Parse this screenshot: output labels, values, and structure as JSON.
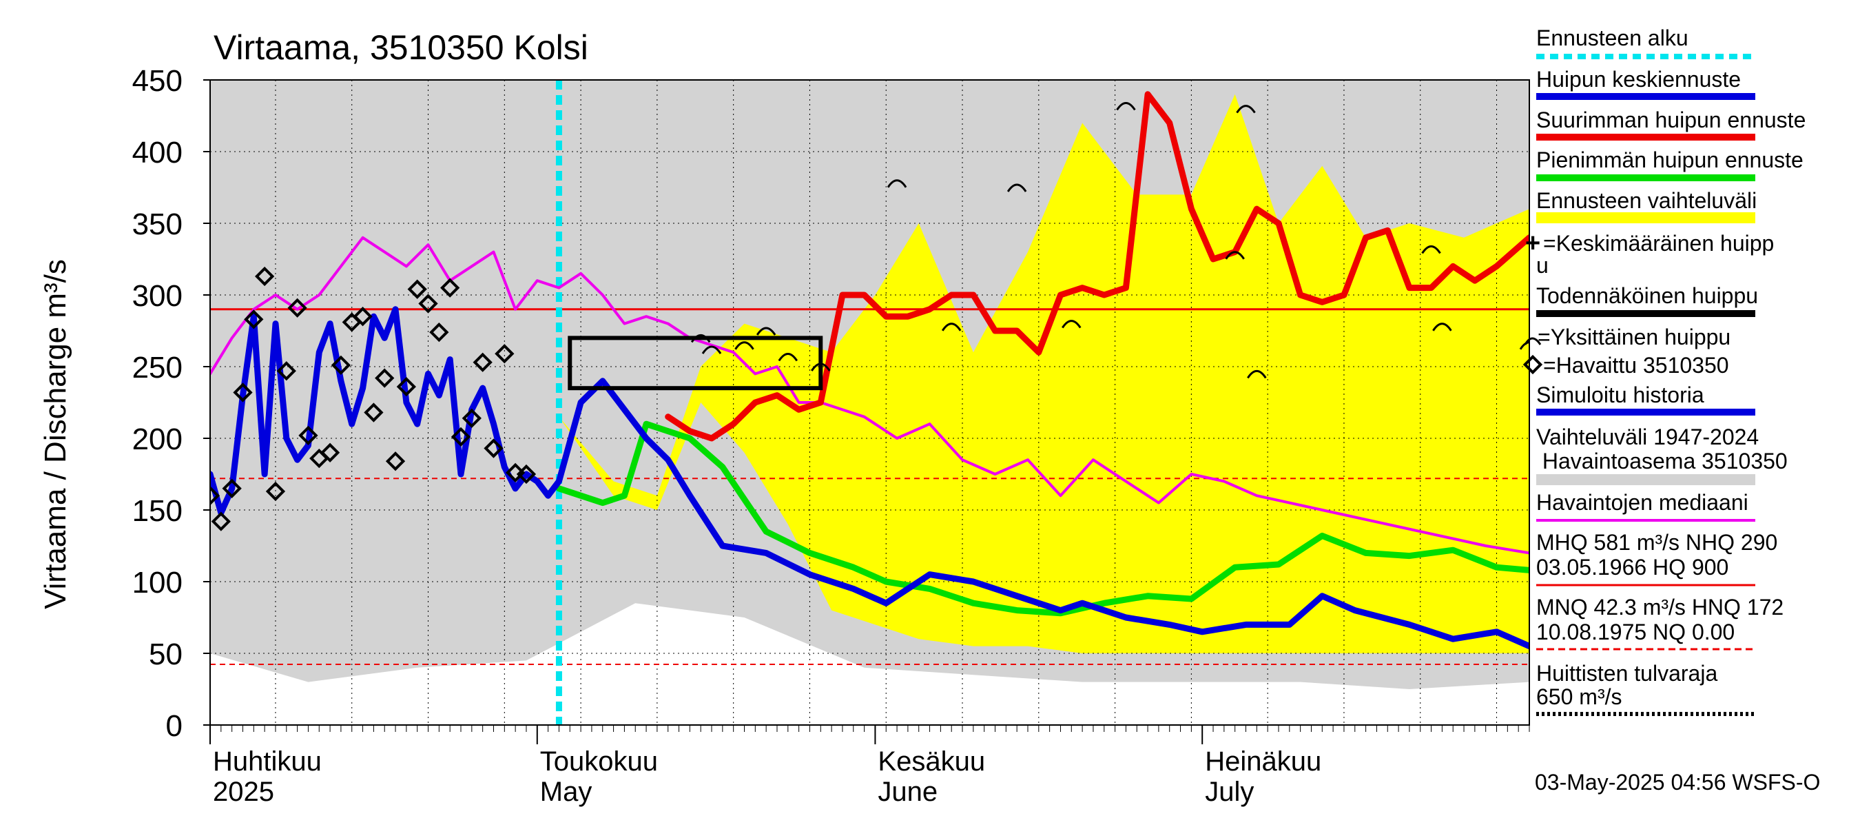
{
  "chart_data": {
    "type": "line",
    "title": "Virtaama, 3510350 Kolsi",
    "ylabel": "Virtaama / Discharge    m³/s",
    "ylim": [
      0,
      450
    ],
    "xlim": [
      "2025-04-01",
      "2025-07-31"
    ],
    "yticks": [
      "0",
      "50",
      "100",
      "150",
      "200",
      "250",
      "300",
      "350",
      "400",
      "450"
    ],
    "month_labels": [
      {
        "date": "2025-04-01",
        "fi": "Huhtikuu",
        "en": "2025"
      },
      {
        "date": "2025-05-01",
        "fi": "Toukokuu",
        "en": "May"
      },
      {
        "date": "2025-06-01",
        "fi": "Kesäkuu",
        "en": "June"
      },
      {
        "date": "2025-07-01",
        "fi": "Heinäkuu",
        "en": "July"
      }
    ],
    "timestamp": "03-May-2025 04:56 WSFS-O",
    "forecast_start": "2025-05-03",
    "reference_lines": {
      "NHQ": 290,
      "HNQ": 172,
      "MNQ": 42.3
    },
    "highlight_box": {
      "x": [
        "2025-05-04",
        "2025-05-27"
      ],
      "y": [
        235,
        270
      ]
    },
    "history_band": {
      "x": [
        "2025-04-01",
        "2025-04-10",
        "2025-04-20",
        "2025-04-30",
        "2025-05-10",
        "2025-05-20",
        "2025-05-31",
        "2025-06-10",
        "2025-06-20",
        "2025-06-30",
        "2025-07-10",
        "2025-07-20",
        "2025-07-31"
      ],
      "upper": [
        450,
        450,
        450,
        450,
        450,
        450,
        450,
        450,
        450,
        450,
        450,
        450,
        450
      ],
      "lower": [
        50,
        30,
        40,
        45,
        85,
        75,
        40,
        35,
        30,
        30,
        30,
        25,
        30
      ]
    },
    "forecast_band": {
      "x": [
        "2025-05-03",
        "2025-05-08",
        "2025-05-12",
        "2025-05-16",
        "2025-05-20",
        "2025-05-24",
        "2025-05-28",
        "2025-06-01",
        "2025-06-05",
        "2025-06-10",
        "2025-06-15",
        "2025-06-20",
        "2025-06-25",
        "2025-06-30",
        "2025-07-04",
        "2025-07-08",
        "2025-07-12",
        "2025-07-16",
        "2025-07-20",
        "2025-07-25",
        "2025-07-31"
      ],
      "upper": [
        215,
        170,
        160,
        250,
        280,
        270,
        260,
        300,
        350,
        260,
        330,
        420,
        370,
        370,
        440,
        350,
        390,
        340,
        350,
        340,
        360
      ],
      "lower": [
        215,
        160,
        150,
        225,
        190,
        140,
        80,
        70,
        60,
        55,
        55,
        50,
        50,
        50,
        50,
        50,
        50,
        50,
        50,
        50,
        50
      ]
    },
    "series": [
      {
        "name": "Huipun keskiennuste",
        "color": "#0000dd",
        "x": [
          "2025-04-01",
          "2025-04-02",
          "2025-04-03",
          "2025-04-04",
          "2025-04-05",
          "2025-04-06",
          "2025-04-07",
          "2025-04-08",
          "2025-04-09",
          "2025-04-10",
          "2025-04-11",
          "2025-04-12",
          "2025-04-13",
          "2025-04-14",
          "2025-04-15",
          "2025-04-16",
          "2025-04-17",
          "2025-04-18",
          "2025-04-19",
          "2025-04-20",
          "2025-04-21",
          "2025-04-22",
          "2025-04-23",
          "2025-04-24",
          "2025-04-25",
          "2025-04-26",
          "2025-04-27",
          "2025-04-28",
          "2025-04-29",
          "2025-04-30",
          "2025-05-01",
          "2025-05-02",
          "2025-05-03",
          "2025-05-05",
          "2025-05-07",
          "2025-05-09",
          "2025-05-11",
          "2025-05-13",
          "2025-05-15",
          "2025-05-18",
          "2025-05-22",
          "2025-05-26",
          "2025-05-30",
          "2025-06-02",
          "2025-06-06",
          "2025-06-10",
          "2025-06-12",
          "2025-06-14",
          "2025-06-18",
          "2025-06-20",
          "2025-06-24",
          "2025-06-28",
          "2025-07-01",
          "2025-07-05",
          "2025-07-09",
          "2025-07-12",
          "2025-07-15",
          "2025-07-20",
          "2025-07-24",
          "2025-07-28",
          "2025-07-31"
        ],
        "values": [
          175,
          148,
          165,
          230,
          285,
          175,
          280,
          200,
          185,
          195,
          260,
          280,
          240,
          210,
          235,
          285,
          270,
          290,
          225,
          210,
          245,
          230,
          255,
          175,
          220,
          235,
          210,
          180,
          165,
          175,
          170,
          160,
          170,
          225,
          240,
          220,
          200,
          185,
          160,
          125,
          120,
          105,
          95,
          85,
          105,
          100,
          95,
          90,
          80,
          85,
          75,
          70,
          65,
          70,
          70,
          90,
          80,
          70,
          60,
          65,
          55
        ]
      },
      {
        "name": "Suurimman huipun ennuste",
        "color": "#ee0000",
        "x": [
          "2025-05-13",
          "2025-05-15",
          "2025-05-17",
          "2025-05-19",
          "2025-05-21",
          "2025-05-23",
          "2025-05-25",
          "2025-05-27",
          "2025-05-29",
          "2025-05-31",
          "2025-06-02",
          "2025-06-04",
          "2025-06-06",
          "2025-06-08",
          "2025-06-10",
          "2025-06-12",
          "2025-06-14",
          "2025-06-16",
          "2025-06-18",
          "2025-06-20",
          "2025-06-22",
          "2025-06-24",
          "2025-06-26",
          "2025-06-28",
          "2025-06-30",
          "2025-07-02",
          "2025-07-04",
          "2025-07-06",
          "2025-07-08",
          "2025-07-10",
          "2025-07-12",
          "2025-07-14",
          "2025-07-16",
          "2025-07-18",
          "2025-07-20",
          "2025-07-22",
          "2025-07-24",
          "2025-07-26",
          "2025-07-28",
          "2025-07-31"
        ],
        "values": [
          215,
          205,
          200,
          210,
          225,
          230,
          220,
          225,
          300,
          300,
          285,
          285,
          290,
          300,
          300,
          275,
          275,
          260,
          300,
          305,
          300,
          305,
          440,
          420,
          360,
          325,
          330,
          360,
          350,
          300,
          295,
          300,
          340,
          345,
          305,
          305,
          320,
          310,
          320,
          340
        ]
      },
      {
        "name": "Pienimmän huipun ennuste",
        "color": "#00dd00",
        "x": [
          "2025-05-03",
          "2025-05-05",
          "2025-05-07",
          "2025-05-09",
          "2025-05-11",
          "2025-05-13",
          "2025-05-15",
          "2025-05-18",
          "2025-05-22",
          "2025-05-26",
          "2025-05-30",
          "2025-06-02",
          "2025-06-06",
          "2025-06-10",
          "2025-06-14",
          "2025-06-18",
          "2025-06-22",
          "2025-06-26",
          "2025-06-30",
          "2025-07-04",
          "2025-07-08",
          "2025-07-12",
          "2025-07-16",
          "2025-07-20",
          "2025-07-24",
          "2025-07-28",
          "2025-07-31"
        ],
        "values": [
          165,
          160,
          155,
          160,
          210,
          205,
          200,
          180,
          135,
          120,
          110,
          100,
          95,
          85,
          80,
          78,
          85,
          90,
          88,
          110,
          112,
          132,
          120,
          118,
          122,
          110,
          108
        ]
      },
      {
        "name": "Havaintojen mediaani",
        "color": "#ee00ee",
        "x": [
          "2025-04-01",
          "2025-04-03",
          "2025-04-05",
          "2025-04-07",
          "2025-04-09",
          "2025-04-11",
          "2025-04-13",
          "2025-04-15",
          "2025-04-17",
          "2025-04-19",
          "2025-04-21",
          "2025-04-23",
          "2025-04-25",
          "2025-04-27",
          "2025-04-29",
          "2025-05-01",
          "2025-05-03",
          "2025-05-05",
          "2025-05-07",
          "2025-05-09",
          "2025-05-11",
          "2025-05-13",
          "2025-05-15",
          "2025-05-17",
          "2025-05-19",
          "2025-05-21",
          "2025-05-23",
          "2025-05-25",
          "2025-05-27",
          "2025-05-29",
          "2025-05-31",
          "2025-06-03",
          "2025-06-06",
          "2025-06-09",
          "2025-06-12",
          "2025-06-15",
          "2025-06-18",
          "2025-06-21",
          "2025-06-24",
          "2025-06-27",
          "2025-06-30",
          "2025-07-03",
          "2025-07-06",
          "2025-07-09",
          "2025-07-12",
          "2025-07-15",
          "2025-07-18",
          "2025-07-21",
          "2025-07-24",
          "2025-07-27",
          "2025-07-31"
        ],
        "values": [
          245,
          270,
          290,
          300,
          290,
          300,
          320,
          340,
          330,
          320,
          335,
          310,
          320,
          330,
          290,
          310,
          305,
          315,
          300,
          280,
          285,
          280,
          270,
          265,
          260,
          245,
          250,
          225,
          225,
          220,
          215,
          200,
          210,
          185,
          175,
          185,
          160,
          185,
          170,
          155,
          175,
          170,
          160,
          155,
          150,
          145,
          140,
          135,
          130,
          125,
          120
        ]
      }
    ],
    "observed": {
      "name": "Havaittu 3510350",
      "x": [
        "2025-04-01",
        "2025-04-02",
        "2025-04-03",
        "2025-04-04",
        "2025-04-05",
        "2025-04-06",
        "2025-04-07",
        "2025-04-08",
        "2025-04-09",
        "2025-04-10",
        "2025-04-11",
        "2025-04-12",
        "2025-04-13",
        "2025-04-14",
        "2025-04-15",
        "2025-04-16",
        "2025-04-17",
        "2025-04-18",
        "2025-04-19",
        "2025-04-20",
        "2025-04-21",
        "2025-04-22",
        "2025-04-23",
        "2025-04-24",
        "2025-04-25",
        "2025-04-26",
        "2025-04-27",
        "2025-04-28",
        "2025-04-29",
        "2025-04-30"
      ],
      "values": [
        160,
        142,
        165,
        232,
        283,
        313,
        163,
        247,
        291,
        202,
        186,
        190,
        251,
        281,
        285,
        218,
        242,
        184,
        236,
        304,
        294,
        274,
        305,
        201,
        214,
        253,
        193,
        259,
        176,
        175
      ]
    },
    "peak_marks": {
      "name": "Yksittäinen huippu",
      "x": [
        "2025-05-16",
        "2025-05-17",
        "2025-05-20",
        "2025-05-22",
        "2025-05-24",
        "2025-05-27",
        "2025-06-03",
        "2025-06-08",
        "2025-06-14",
        "2025-06-19",
        "2025-06-24",
        "2025-07-04",
        "2025-07-05",
        "2025-07-06",
        "2025-07-22",
        "2025-07-23",
        "2025-07-31"
      ],
      "values": [
        270,
        262,
        265,
        275,
        257,
        250,
        378,
        278,
        375,
        280,
        432,
        328,
        430,
        245,
        332,
        278,
        265
      ]
    },
    "legend": [
      "Ennusteen alku",
      "Huipun keskiennuste",
      "Suurimman huipun ennuste",
      "Pienimmän huipun ennuste",
      "Ennusteen vaihteluväli",
      "=Keskimääräinen huipp",
      "u",
      "Todennäköinen huippu",
      "=Yksittäinen huippu",
      "=Havaittu 3510350",
      "Simuloitu historia",
      "Vaihteluväli 1947-2024",
      " Havaintoasema 3510350",
      "Havaintojen mediaani",
      "MHQ  581 m³/s NHQ  290",
      "03.05.1966 HQ  900",
      "MNQ 42.3 m³/s HNQ  172",
      "10.08.1975 NQ 0.00",
      "Huittisten tulvaraja",
      "650 m³/s"
    ],
    "colors": {
      "history": "#d3d3d3",
      "forecast_band": "#ffff00",
      "forecast_start": "#00e5ee",
      "mean_peak": "#0000dd",
      "max_peak": "#ee0000",
      "min_peak": "#00dd00",
      "median": "#ee00ee",
      "grid": "#000000"
    }
  }
}
